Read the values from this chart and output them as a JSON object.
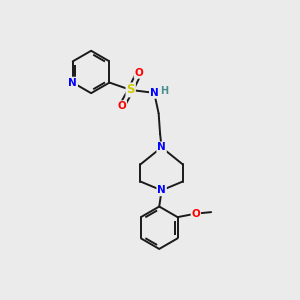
{
  "background_color": "#ebebeb",
  "bond_color": "#1a1a1a",
  "atom_colors": {
    "N": "#0000ff",
    "O": "#ff0000",
    "S": "#cccc00",
    "H": "#4a9090",
    "C": "#1a1a1a"
  },
  "figsize": [
    3.0,
    3.0
  ],
  "dpi": 100
}
